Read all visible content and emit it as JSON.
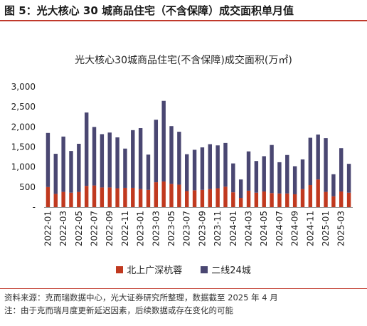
{
  "figure_title": "图 5：光大核心 30 城商品住宅（不含保障）成交面积单月值",
  "source": "资料来源：克而瑞数据中心，光大证券研究所整理，数据截至 2025 年 4 月",
  "note": "注：由于克而瑞月度更新延迟因素，后续数据或存在变化的可能",
  "chart_data": {
    "type": "bar",
    "stacked": true,
    "title": "光大核心30城商品住宅(不含保障)成交面积(万㎡)",
    "xlabel": "",
    "ylabel": "",
    "ylim": [
      0,
      3000
    ],
    "yticks": [
      "-",
      "500",
      "1,000",
      "1,500",
      "2,000",
      "2,500",
      "3,000"
    ],
    "grid": false,
    "legend_position": "bottom",
    "categories": [
      "2022-01",
      "2022-02",
      "2022-03",
      "2022-04",
      "2022-05",
      "2022-06",
      "2022-07",
      "2022-08",
      "2022-09",
      "2022-10",
      "2022-11",
      "2022-12",
      "2023-01",
      "2023-02",
      "2023-03",
      "2023-04",
      "2023-05",
      "2023-06",
      "2023-07",
      "2023-08",
      "2023-09",
      "2023-10",
      "2023-11",
      "2023-12",
      "2024-01",
      "2024-02",
      "2024-03",
      "2024-04",
      "2024-05",
      "2024-06",
      "2024-07",
      "2024-08",
      "2024-09",
      "2024-10",
      "2024-11",
      "2024-12",
      "2025-01",
      "2025-02",
      "2025-03",
      "2025-04"
    ],
    "xtick_labels": [
      "2022-01",
      "",
      "2022-03",
      "",
      "2022-05",
      "",
      "2022-07",
      "",
      "2022-09",
      "",
      "2022-11",
      "",
      "2023-01",
      "",
      "2023-03",
      "",
      "2023-05",
      "",
      "2023-07",
      "",
      "2023-09",
      "",
      "2023-11",
      "",
      "2024-01",
      "",
      "2024-03",
      "",
      "2024-05",
      "",
      "2024-07",
      "",
      "2024-09",
      "",
      "2024-11",
      "",
      "2025-01",
      "",
      "2025-03",
      ""
    ],
    "series": [
      {
        "name": "北上广深杭蓉",
        "color": "#c0391f",
        "values": [
          500,
          330,
          380,
          360,
          380,
          530,
          540,
          490,
          490,
          470,
          480,
          480,
          450,
          430,
          620,
          640,
          580,
          560,
          400,
          420,
          430,
          450,
          470,
          510,
          370,
          230,
          410,
          360,
          390,
          350,
          340,
          340,
          320,
          450,
          550,
          690,
          380,
          270,
          390,
          360
        ]
      },
      {
        "name": "二线24城",
        "color": "#4a4772",
        "values": [
          1350,
          1000,
          1380,
          1040,
          1200,
          1830,
          1460,
          1330,
          1370,
          1270,
          980,
          1440,
          1520,
          880,
          1560,
          2010,
          1440,
          1320,
          920,
          1010,
          1060,
          1120,
          1070,
          1090,
          720,
          460,
          980,
          790,
          880,
          1200,
          780,
          960,
          700,
          740,
          1180,
          1120,
          1340,
          550,
          1080,
          720
        ]
      }
    ]
  }
}
